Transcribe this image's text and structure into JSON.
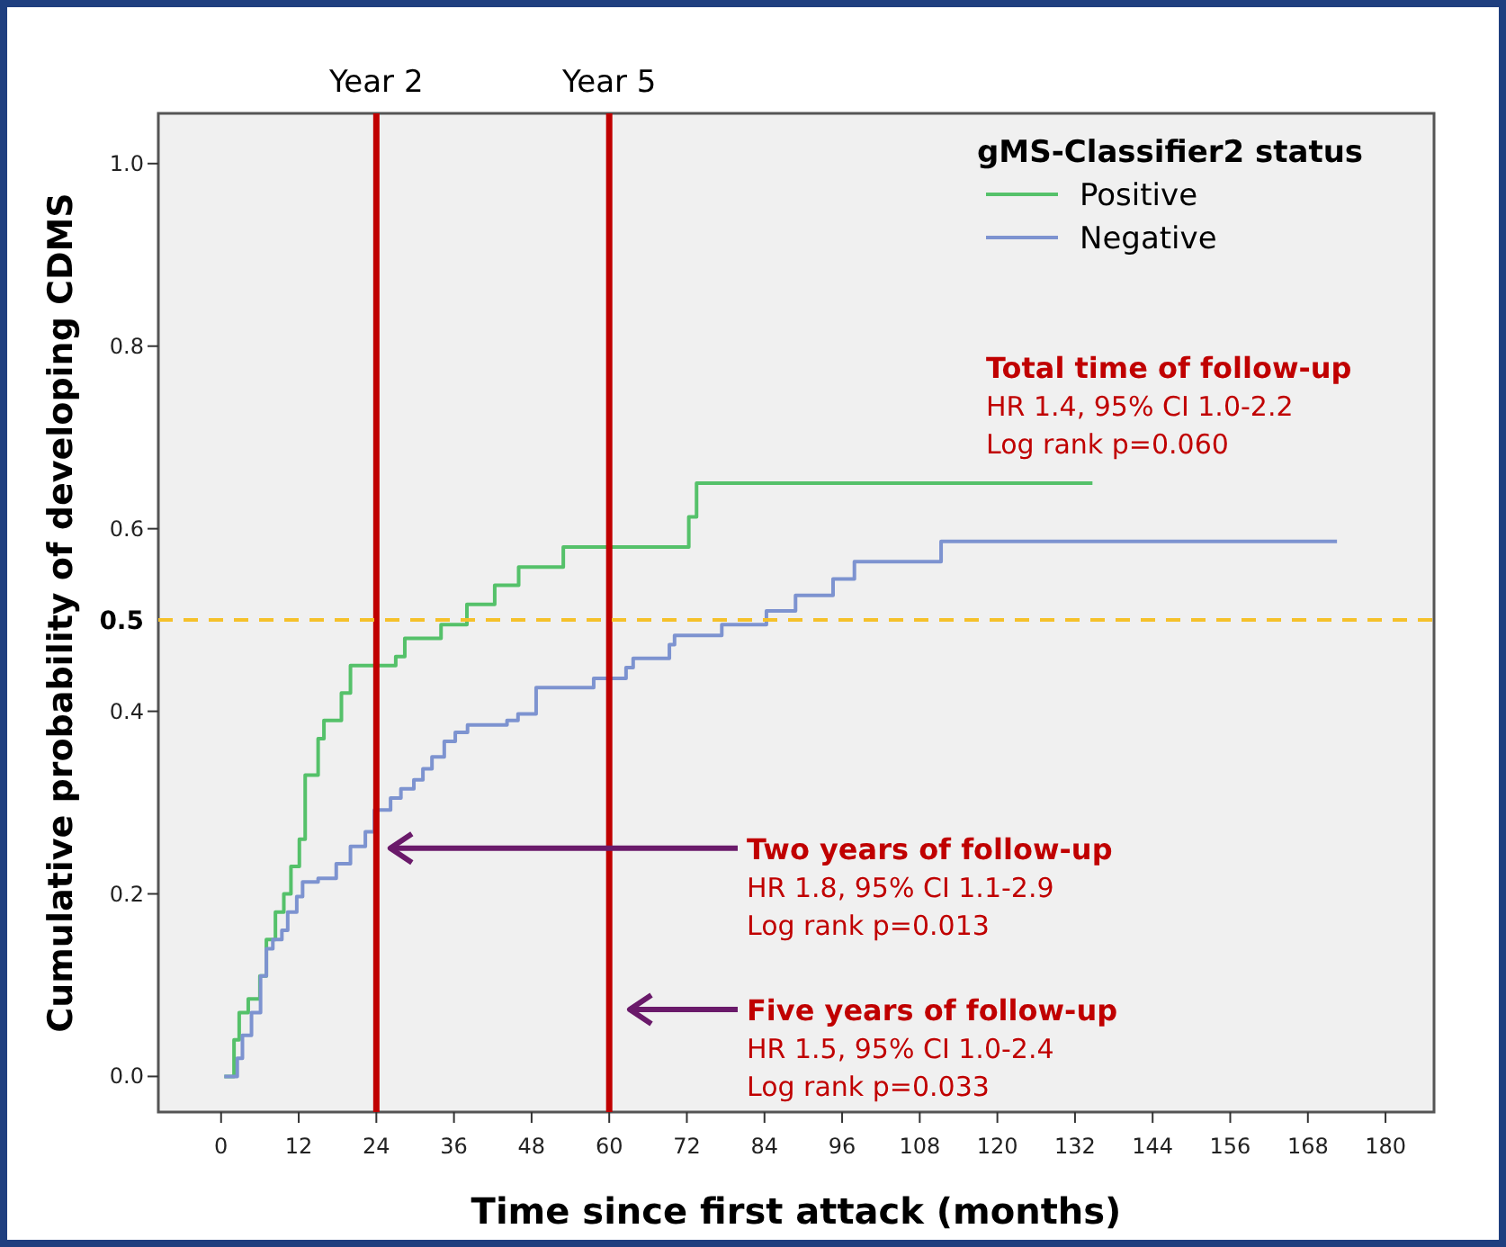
{
  "chart_data": {
    "type": "step",
    "xlabel": "Time since first attack (months)",
    "ylabel": "Cumulative probability of developing CDMS",
    "legend_title": "gMS-Classifier2 status",
    "legend": "top right",
    "grid": false,
    "marker": "none",
    "line_style": "solid",
    "xlim": [
      -9.7,
      187.5
    ],
    "ylim": [
      -0.039,
      1.055
    ],
    "xticks": [
      0,
      12,
      24,
      36,
      48,
      60,
      72,
      84,
      96,
      108,
      120,
      132,
      144,
      156,
      168,
      180
    ],
    "yticks": [
      {
        "value": 0,
        "label": "0.0"
      },
      {
        "value": 0.2,
        "label": "0.2"
      },
      {
        "value": 0.4,
        "label": "0.4"
      },
      {
        "value": 0.6,
        "label": "0.6"
      },
      {
        "value": 0.8,
        "label": "0.8"
      },
      {
        "value": 1,
        "label": "1.0"
      }
    ],
    "series": [
      {
        "name": "Positive",
        "color": "#55c16a",
        "x": [
          0.5,
          2,
          2.8,
          4.2,
          6,
          7,
          8.4,
          9.7,
          10.8,
          12.1,
          13,
          15,
          15.9,
          18.6,
          20,
          27,
          28.4,
          34,
          38,
          42.3,
          46,
          52.9,
          72.3,
          73.5,
          134.7
        ],
        "values": [
          0,
          0.04,
          0.07,
          0.085,
          0.11,
          0.15,
          0.18,
          0.2,
          0.23,
          0.26,
          0.33,
          0.37,
          0.39,
          0.42,
          0.45,
          0.46,
          0.48,
          0.495,
          0.517,
          0.538,
          0.558,
          0.58,
          0.613,
          0.65,
          0.65
        ]
      },
      {
        "name": "Negative",
        "color": "#7d93d0",
        "x": [
          0.5,
          2.5,
          3.3,
          4.7,
          6.1,
          7,
          8,
          9.4,
          10.3,
          11.7,
          12.6,
          15,
          17.8,
          20,
          22.3,
          23.7,
          26.2,
          27.8,
          29.8,
          31.2,
          32.6,
          34.5,
          36.2,
          38.1,
          44.2,
          45.9,
          48.7,
          57.6,
          62.6,
          63.7,
          69.3,
          70.1,
          77.4,
          84.3,
          88.8,
          94.6,
          97.9,
          111.3,
          172.5
        ],
        "values": [
          0,
          0.02,
          0.045,
          0.07,
          0.11,
          0.14,
          0.15,
          0.16,
          0.18,
          0.197,
          0.213,
          0.217,
          0.233,
          0.252,
          0.268,
          0.292,
          0.305,
          0.315,
          0.325,
          0.337,
          0.35,
          0.367,
          0.377,
          0.385,
          0.39,
          0.397,
          0.426,
          0.436,
          0.448,
          0.458,
          0.473,
          0.483,
          0.495,
          0.51,
          0.527,
          0.545,
          0.564,
          0.586,
          0.586
        ]
      }
    ],
    "ref_lines": [
      {
        "axis": "x",
        "value": 24,
        "label": "Year 2",
        "color": "#c00000",
        "line_style": "solid"
      },
      {
        "axis": "x",
        "value": 60,
        "label": "Year 5",
        "color": "#c00000",
        "line_style": "solid"
      },
      {
        "axis": "y",
        "value": 0.5,
        "label": "0.5",
        "color": "#f5c12a",
        "line_style": "dashed"
      }
    ],
    "annotations": [
      "Total time of follow-up\nHR 1.4, 95% CI 1.0-2.2\nLog rank p=0.060",
      {
        "text": "Two years of follow-up\nHR 1.8, 95% CI 1.1-2.9\nLog rank p=0.013",
        "x": 25.6,
        "y": 0.25
      },
      "Five years of follow-up\nHR 1.5, 95% CI 1.0-2.4\nLog rank p=0.033"
    ]
  }
}
